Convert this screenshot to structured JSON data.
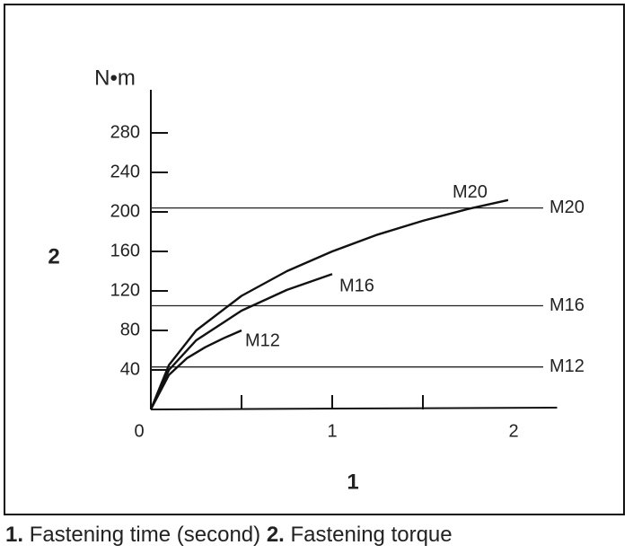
{
  "chart_data": {
    "type": "line",
    "y_unit": "N•m",
    "y_label": "2",
    "x_label": "1",
    "xlim": [
      0,
      2.24
    ],
    "ylim": [
      0,
      320
    ],
    "xticks": [
      0,
      1,
      2
    ],
    "x_minor_ticks": [
      0.5,
      1,
      1.5
    ],
    "yticks": [
      40,
      80,
      120,
      160,
      200,
      240,
      280
    ],
    "series": [
      {
        "name": "M20",
        "color": "#111111",
        "x": [
          0,
          0.1,
          0.25,
          0.5,
          0.75,
          1,
          1.25,
          1.5,
          1.75,
          1.97
        ],
        "values": [
          0,
          45,
          80,
          115,
          140,
          160,
          177,
          191,
          203,
          212
        ]
      },
      {
        "name": "M16",
        "color": "#111111",
        "x": [
          0,
          0.1,
          0.25,
          0.5,
          0.75,
          1
        ],
        "values": [
          0,
          40,
          70,
          100,
          121,
          137
        ]
      },
      {
        "name": "M12",
        "color": "#111111",
        "x": [
          0,
          0.1,
          0.2,
          0.3,
          0.4,
          0.5
        ],
        "values": [
          0,
          35,
          52,
          63,
          72,
          80
        ]
      }
    ],
    "reference_lines": [
      {
        "label": "M20",
        "value": 204
      },
      {
        "label": "M16",
        "value": 105
      },
      {
        "label": "M12",
        "value": 43
      }
    ]
  },
  "caption": [
    {
      "number": "1.",
      "text": "Fastening time (second)"
    },
    {
      "number": "2.",
      "text": "Fastening torque"
    }
  ]
}
